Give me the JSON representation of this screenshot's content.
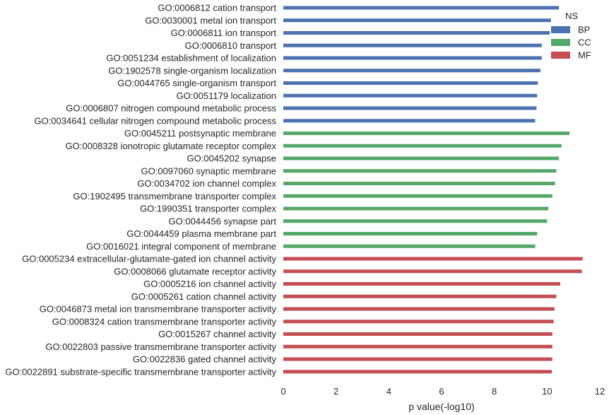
{
  "chart_data": {
    "type": "bar",
    "orientation": "horizontal",
    "xlabel": "p value(-log10)",
    "ylabel": "",
    "xlim": [
      0,
      12
    ],
    "xticks": [
      0,
      2,
      4,
      6,
      8,
      10,
      12
    ],
    "grid": false,
    "legend": {
      "title": "NS",
      "placement": "top-right",
      "items": [
        {
          "name": "BP",
          "color": "#4c72b0"
        },
        {
          "name": "CC",
          "color": "#55a868"
        },
        {
          "name": "MF",
          "color": "#c44e52"
        }
      ]
    },
    "bars": [
      {
        "label": "GO:0006812 cation transport",
        "value": 10.45,
        "group": "BP"
      },
      {
        "label": "GO:0030001 metal ion transport",
        "value": 10.15,
        "group": "BP"
      },
      {
        "label": "GO:0006811 ion transport",
        "value": 10.1,
        "group": "BP"
      },
      {
        "label": "GO:0006810 transport",
        "value": 9.8,
        "group": "BP"
      },
      {
        "label": "GO:0051234 establishment of localization",
        "value": 9.8,
        "group": "BP"
      },
      {
        "label": "GO:1902578 single-organism localization",
        "value": 9.75,
        "group": "BP"
      },
      {
        "label": "GO:0044765 single-organism transport",
        "value": 9.65,
        "group": "BP"
      },
      {
        "label": "GO:0051179 localization",
        "value": 9.62,
        "group": "BP"
      },
      {
        "label": "GO:0006807 nitrogen compound metabolic process",
        "value": 9.6,
        "group": "BP"
      },
      {
        "label": "GO:0034641 cellular nitrogen compound metabolic process",
        "value": 9.55,
        "group": "BP"
      },
      {
        "label": "GO:0045211 postsynaptic membrane",
        "value": 10.85,
        "group": "CC"
      },
      {
        "label": "GO:0008328 ionotropic glutamate receptor complex",
        "value": 10.55,
        "group": "CC"
      },
      {
        "label": "GO:0045202 synapse",
        "value": 10.45,
        "group": "CC"
      },
      {
        "label": "GO:0097060 synaptic membrane",
        "value": 10.35,
        "group": "CC"
      },
      {
        "label": "GO:0034702 ion channel complex",
        "value": 10.3,
        "group": "CC"
      },
      {
        "label": "GO:1902495 transmembrane transporter complex",
        "value": 10.2,
        "group": "CC"
      },
      {
        "label": "GO:1990351 transporter complex",
        "value": 10.05,
        "group": "CC"
      },
      {
        "label": "GO:0044456 synapse part",
        "value": 10.0,
        "group": "CC"
      },
      {
        "label": "GO:0044459 plasma membrane part",
        "value": 9.62,
        "group": "CC"
      },
      {
        "label": "GO:0016021 integral component of membrane",
        "value": 9.55,
        "group": "CC"
      },
      {
        "label": "GO:0005234 extracellular-glutamate-gated ion channel activity",
        "value": 11.35,
        "group": "MF"
      },
      {
        "label": "GO:0008066 glutamate receptor activity",
        "value": 11.32,
        "group": "MF"
      },
      {
        "label": "GO:0005216 ion channel activity",
        "value": 10.5,
        "group": "MF"
      },
      {
        "label": "GO:0005261 cation channel activity",
        "value": 10.35,
        "group": "MF"
      },
      {
        "label": "GO:0046873 metal ion transmembrane transporter activity",
        "value": 10.28,
        "group": "MF"
      },
      {
        "label": "GO:0008324 cation transmembrane transporter activity",
        "value": 10.25,
        "group": "MF"
      },
      {
        "label": "GO:0015267 channel activity",
        "value": 10.2,
        "group": "MF"
      },
      {
        "label": "GO:0022803 passive transmembrane transporter activity",
        "value": 10.2,
        "group": "MF"
      },
      {
        "label": "GO:0022836 gated channel activity",
        "value": 10.2,
        "group": "MF"
      },
      {
        "label": "GO:0022891 substrate-specific transmembrane transporter activity",
        "value": 10.18,
        "group": "MF"
      }
    ]
  }
}
